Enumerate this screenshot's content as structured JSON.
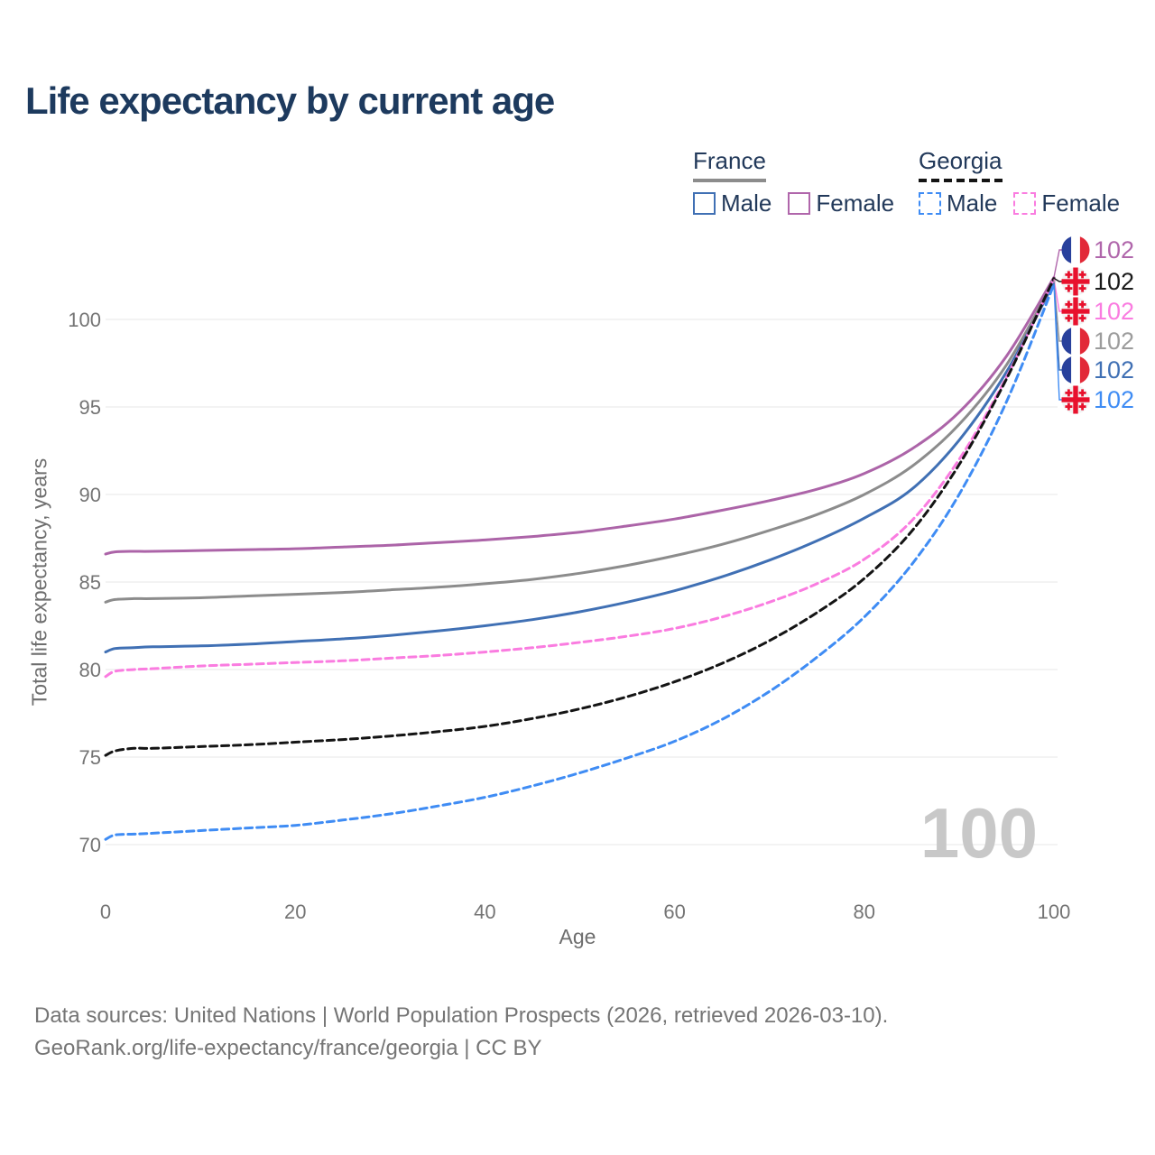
{
  "page": {
    "title": "Life expectancy by current age",
    "watermark": "100"
  },
  "legend": {
    "groups": [
      {
        "name": "France",
        "line_style": "solid",
        "line_color": "#8c8c8c",
        "items": [
          {
            "label": "Male",
            "color": "#4070b4",
            "dashed": false
          },
          {
            "label": "Female",
            "color": "#b066ab",
            "dashed": false
          }
        ]
      },
      {
        "name": "Georgia",
        "line_style": "dashed",
        "line_color": "#141414",
        "items": [
          {
            "label": "Male",
            "color": "#3f8cf4",
            "dashed": true
          },
          {
            "label": "Female",
            "color": "#fa7ce0",
            "dashed": true
          }
        ]
      }
    ]
  },
  "chart_data": {
    "type": "line",
    "title": "Life expectancy by current age",
    "xlabel": "Age",
    "ylabel": "Total life expectancy, years",
    "x_ticks": [
      0,
      20,
      40,
      60,
      80,
      100
    ],
    "y_ticks": [
      70,
      75,
      80,
      85,
      90,
      95,
      100
    ],
    "xlim": [
      0,
      100
    ],
    "ylim": [
      70,
      102.5
    ],
    "grid": "horizontal",
    "grid_color": "#ececec",
    "tick_color": "#747474",
    "watermark_text": "100",
    "watermark_color": "#c8c8c8",
    "x": [
      0,
      1,
      3,
      5,
      10,
      15,
      20,
      25,
      30,
      35,
      40,
      45,
      50,
      55,
      60,
      65,
      70,
      75,
      80,
      85,
      90,
      95,
      100
    ],
    "series": [
      {
        "id": "france-female",
        "country": "France",
        "group": "Female",
        "color": "#ac64a8",
        "label_color": "#b066ab",
        "dashed": false,
        "flag": "france",
        "end_label": "102",
        "y": [
          86.6,
          86.72,
          86.75,
          86.75,
          86.8,
          86.85,
          86.9,
          87.0,
          87.1,
          87.25,
          87.4,
          87.6,
          87.85,
          88.2,
          88.6,
          89.1,
          89.65,
          90.3,
          91.2,
          92.6,
          94.7,
          97.9,
          102.4
        ]
      },
      {
        "id": "france-total",
        "country": "France",
        "group": "All",
        "color": "#8c8c8c",
        "label_color": "#9c9c9c",
        "dashed": false,
        "flag": "france",
        "end_label": "102",
        "y": [
          83.85,
          84.0,
          84.05,
          84.05,
          84.1,
          84.2,
          84.3,
          84.4,
          84.55,
          84.7,
          84.9,
          85.15,
          85.5,
          85.95,
          86.5,
          87.15,
          87.95,
          88.85,
          90.0,
          91.6,
          94.0,
          97.4,
          102.2
        ]
      },
      {
        "id": "france-male",
        "country": "France",
        "group": "Male",
        "color": "#4070b4",
        "label_color": "#4070b4",
        "dashed": false,
        "flag": "france",
        "end_label": "102",
        "y": [
          81.0,
          81.2,
          81.25,
          81.3,
          81.35,
          81.45,
          81.6,
          81.75,
          81.95,
          82.2,
          82.5,
          82.85,
          83.3,
          83.85,
          84.5,
          85.3,
          86.25,
          87.35,
          88.65,
          90.3,
          93.1,
          97.0,
          102.1
        ]
      },
      {
        "id": "georgia-female",
        "country": "Georgia",
        "group": "Female",
        "color": "#fa7ce0",
        "label_color": "#fa7ce0",
        "dashed": true,
        "flag": "georgia",
        "end_label": "102",
        "y": [
          79.6,
          79.9,
          80.0,
          80.05,
          80.2,
          80.3,
          80.4,
          80.5,
          80.65,
          80.8,
          81.0,
          81.25,
          81.55,
          81.9,
          82.35,
          83.0,
          83.85,
          84.9,
          86.3,
          88.5,
          92.0,
          96.7,
          102.3
        ]
      },
      {
        "id": "georgia-total",
        "country": "Georgia",
        "group": "All",
        "color": "#141414",
        "label_color": "#1a1a1a",
        "dashed": true,
        "flag": "georgia",
        "end_label": "102",
        "y": [
          75.1,
          75.35,
          75.5,
          75.5,
          75.6,
          75.7,
          75.85,
          76.0,
          76.2,
          76.45,
          76.75,
          77.2,
          77.75,
          78.45,
          79.3,
          80.35,
          81.65,
          83.25,
          85.2,
          87.9,
          91.7,
          96.6,
          102.35
        ]
      },
      {
        "id": "georgia-male",
        "country": "Georgia",
        "group": "Male",
        "color": "#3f8cf4",
        "label_color": "#3f8cf4",
        "dashed": true,
        "flag": "georgia",
        "end_label": "102",
        "y": [
          70.3,
          70.55,
          70.6,
          70.65,
          70.8,
          70.95,
          71.1,
          71.4,
          71.75,
          72.2,
          72.7,
          73.35,
          74.1,
          74.95,
          75.9,
          77.15,
          78.75,
          80.7,
          83.0,
          86.0,
          90.0,
          95.3,
          102.0
        ]
      }
    ],
    "end_label_order": [
      "france-female",
      "georgia-total",
      "georgia-female",
      "france-total",
      "france-male",
      "georgia-male"
    ]
  },
  "footer": {
    "line1": "Data sources: United Nations | World Population Prospects (2026, retrieved 2026-03-10).",
    "line2": "GeoRank.org/life-expectancy/france/georgia | CC BY"
  }
}
